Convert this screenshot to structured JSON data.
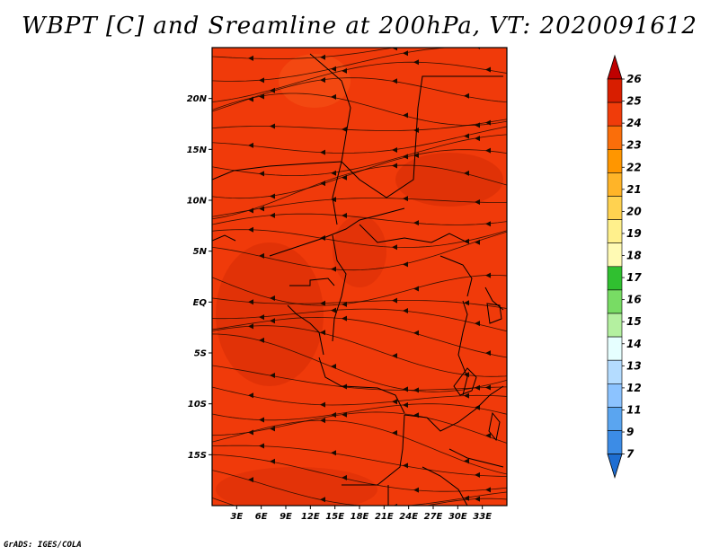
{
  "title": "WBPT [C] and Sreamline at 200hPa, VT: 2020091612",
  "footer": "GrADS: IGES/COLA",
  "map": {
    "lon_range": [
      0,
      36
    ],
    "lat_range": [
      -20,
      25
    ],
    "lon_ticks": [
      "3E",
      "6E",
      "9E",
      "12E",
      "15E",
      "18E",
      "21E",
      "24E",
      "27E",
      "30E",
      "33E"
    ],
    "lat_ticks": [
      "20N",
      "15N",
      "10N",
      "5N",
      "EQ",
      "5S",
      "10S",
      "15S"
    ],
    "fill_color": "#f03a0a",
    "streamline_color": "#1a0a00",
    "border_color": "#000000"
  },
  "colorbar": {
    "labels": [
      "26",
      "25",
      "24",
      "23",
      "22",
      "21",
      "20",
      "19",
      "18",
      "17",
      "16",
      "15",
      "14",
      "13",
      "12",
      "11",
      "9",
      "7"
    ],
    "colors": [
      "#be0000",
      "#d81e00",
      "#f03c0a",
      "#fa6e0a",
      "#ff9600",
      "#ffb428",
      "#ffd250",
      "#fff08c",
      "#fffab4",
      "#30c030",
      "#78dc64",
      "#b4f0a0",
      "#e6ffff",
      "#b4dcff",
      "#8cc3ff",
      "#5aa5f0",
      "#3c8ce6",
      "#1e6ed2"
    ]
  }
}
